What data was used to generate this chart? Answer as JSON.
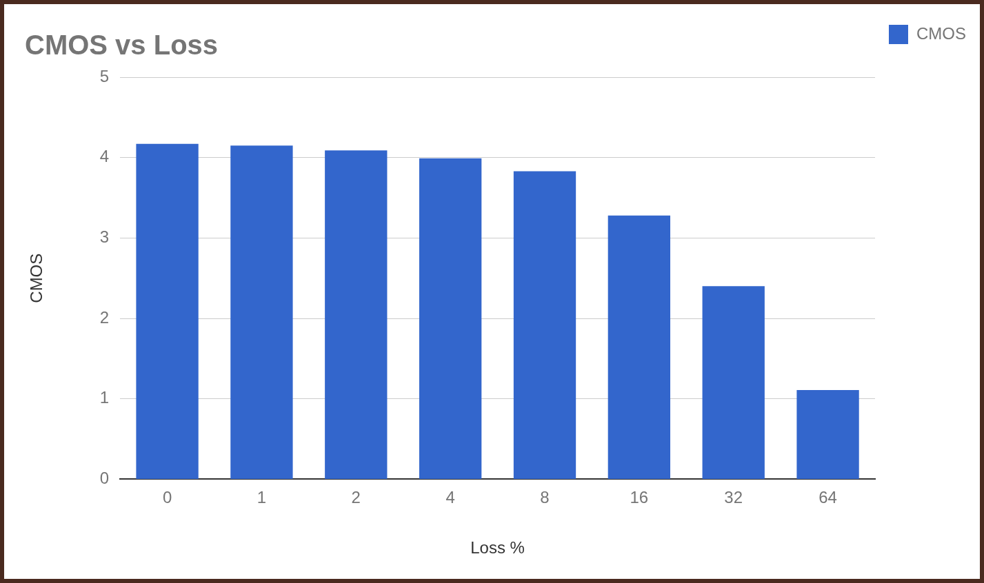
{
  "chart_data": {
    "type": "bar",
    "title": "CMOS vs Loss",
    "xlabel": "Loss %",
    "ylabel": "CMOS",
    "categories": [
      "0",
      "1",
      "2",
      "4",
      "8",
      "16",
      "32",
      "64"
    ],
    "series": [
      {
        "name": "CMOS",
        "color": "#3366cc",
        "values": [
          4.17,
          4.15,
          4.09,
          3.99,
          3.83,
          3.28,
          2.4,
          1.11
        ]
      }
    ],
    "ylim": [
      0,
      5
    ],
    "yticks": [
      0,
      1,
      2,
      3,
      4,
      5
    ],
    "grid": "y",
    "legend": "top right"
  }
}
